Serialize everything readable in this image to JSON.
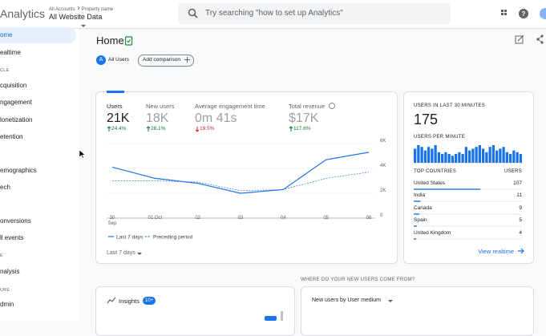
{
  "header": {
    "product": "Analytics",
    "breadcrumb": [
      "All Accounts",
      "Property name"
    ],
    "property": "All Website Data",
    "search_placeholder": "Try searching \"how to set up Analytics\""
  },
  "sidebar": {
    "active": 0,
    "items": [
      {
        "text": "ome",
        "kind": "item"
      },
      {
        "text": "ealtime",
        "kind": "item"
      },
      {
        "text": "CLE",
        "kind": "section"
      },
      {
        "text": "cquisition",
        "kind": "item"
      },
      {
        "text": "ngagement",
        "kind": "item"
      },
      {
        "text": "lonetization",
        "kind": "item"
      },
      {
        "text": "etention",
        "kind": "item"
      },
      {
        "text": "emographics",
        "kind": "item"
      },
      {
        "text": "ech",
        "kind": "item"
      },
      {
        "text": "onversions",
        "kind": "item"
      },
      {
        "text": "ll events",
        "kind": "item"
      },
      {
        "text": "E",
        "kind": "section"
      },
      {
        "text": "nalysis",
        "kind": "item"
      },
      {
        "text": "URE",
        "kind": "section"
      },
      {
        "text": "dmin",
        "kind": "item"
      }
    ]
  },
  "page": {
    "title": "Home",
    "segment_initial": "A",
    "segment": "All Users",
    "add_comparison": "Add comparison"
  },
  "metrics": [
    {
      "label": "Users",
      "value": "21K",
      "change": "24.4%",
      "direction": "up"
    },
    {
      "label": "New users",
      "value": "18K",
      "change": "28.1%",
      "direction": "up"
    },
    {
      "label": "Average engagement time",
      "value": "0m 41s",
      "change": "19.5%",
      "direction": "down"
    },
    {
      "label": "Total revenue",
      "value": "$17K",
      "change": "117.6%",
      "direction": "up"
    }
  ],
  "main_chart": {
    "type": "line",
    "categories": [
      "30 Sep",
      "01 Oct",
      "02",
      "03",
      "04",
      "05",
      "06"
    ],
    "series": [
      {
        "name": "Last 7 days",
        "color": "#1a73e8",
        "style": "solid",
        "values": [
          4100,
          3200,
          2800,
          2000,
          2300,
          4700,
          5300
        ]
      },
      {
        "name": "Preceding period",
        "color": "#4a7fd4",
        "style": "dashed",
        "values": [
          3000,
          3000,
          2900,
          2200,
          2300,
          3200,
          3700
        ]
      }
    ],
    "ylim": [
      0,
      6000
    ],
    "yticks": [
      {
        "value": 0,
        "label": "0"
      },
      {
        "value": 2000,
        "label": "2K"
      },
      {
        "value": 4000,
        "label": "4K"
      },
      {
        "value": 6000,
        "label": "6K"
      }
    ],
    "grid": true,
    "date_range": "Last 7 days"
  },
  "realtime": {
    "title": "USERS IN LAST 30 MINUTES",
    "value": "175",
    "per_minute_title": "USERS PER MINUTE",
    "per_minute": {
      "type": "bar",
      "color": "#1a73e8",
      "values": [
        8,
        10,
        9,
        7,
        9,
        8,
        10,
        6,
        5,
        6,
        5,
        4,
        5,
        6,
        5,
        9,
        7,
        8,
        9,
        10,
        8,
        6,
        9,
        10,
        7,
        8,
        9,
        6,
        5,
        7,
        6,
        5
      ]
    },
    "countries_title": "TOP COUNTRIES",
    "users_title": "USERS",
    "countries": [
      {
        "name": "United States",
        "users": 107
      },
      {
        "name": "India",
        "users": 11
      },
      {
        "name": "Canada",
        "users": 9
      },
      {
        "name": "Spain",
        "users": 5
      },
      {
        "name": "United Kingdom",
        "users": 4
      }
    ],
    "link": "View realtime"
  },
  "bottom": {
    "question": "WHERE DO YOUR NEW USERS COME FROM?",
    "insights": "Insights",
    "insights_badge": "10+",
    "dropdown": "New users by User medium"
  }
}
